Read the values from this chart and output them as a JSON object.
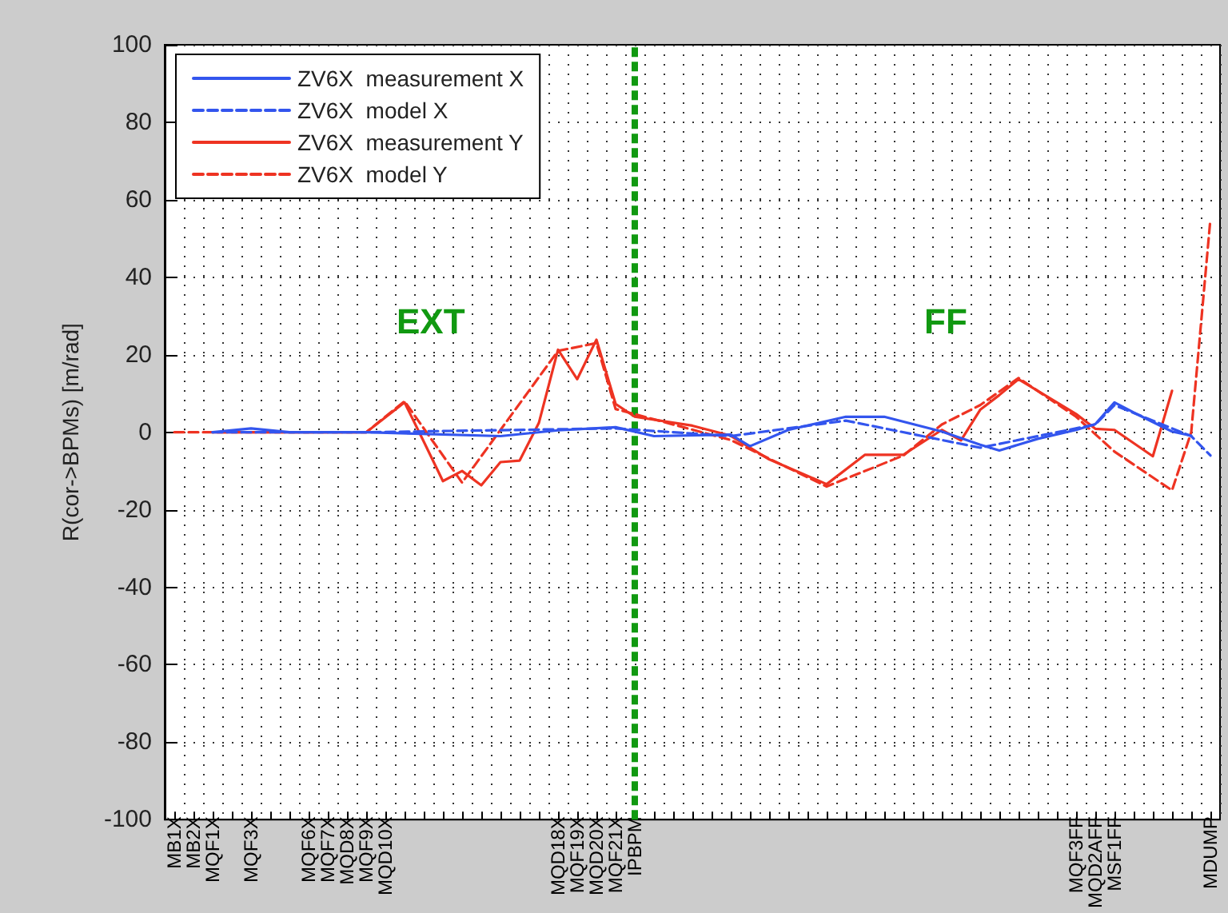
{
  "chart_data": {
    "type": "line",
    "ylabel": "R(cor->BPMs) [m/rad]",
    "categories": [
      "MB1X",
      "MB2X",
      "MQF1X",
      null,
      "MQF3X",
      null,
      null,
      "MQF6X",
      "MQF7X",
      "MQD8X",
      "MQF9X",
      "MQD10X",
      null,
      null,
      null,
      null,
      null,
      null,
      null,
      null,
      "MQD18X",
      "MQF19X",
      "MQD20X",
      "MQF21X",
      "IPBPM",
      null,
      null,
      null,
      null,
      null,
      null,
      null,
      null,
      null,
      null,
      null,
      null,
      null,
      null,
      null,
      null,
      null,
      null,
      null,
      null,
      null,
      null,
      "MQF3FF",
      "MQD2AFF",
      "MSF1FF",
      null,
      null,
      null,
      null,
      "MDUMP"
    ],
    "ylim": [
      -100,
      100
    ],
    "yticks": [
      -100,
      -80,
      -60,
      -40,
      -20,
      0,
      20,
      40,
      60,
      80,
      100
    ],
    "grid": true,
    "legend": "top left",
    "marker": "none",
    "series": [
      {
        "name": "ZV6X  measurement X",
        "color": "#3355ee",
        "line_style": "solid",
        "values": [
          null,
          null,
          0,
          null,
          1,
          null,
          0,
          null,
          null,
          null,
          0,
          null,
          null,
          null,
          null,
          null,
          null,
          -1,
          null,
          null,
          0.5,
          null,
          null,
          1.3,
          null,
          -1,
          null,
          null,
          null,
          -0.6,
          -3.6,
          null,
          0.6,
          null,
          null,
          4,
          null,
          4,
          null,
          null,
          0.2,
          null,
          -3.2,
          -4.7,
          null,
          -1.7,
          null,
          0.6,
          2.1,
          7.7,
          5.1,
          null,
          0.2,
          -0.9,
          null
        ]
      },
      {
        "name": "ZV6X  model X",
        "color": "#3355ee",
        "line_style": "dashed",
        "values": [
          null,
          null,
          0,
          null,
          null,
          null,
          null,
          null,
          null,
          null,
          0,
          null,
          null,
          null,
          null,
          null,
          null,
          null,
          null,
          null,
          null,
          null,
          null,
          1,
          null,
          null,
          null,
          null,
          null,
          -1,
          null,
          null,
          null,
          null,
          null,
          3,
          null,
          null,
          null,
          null,
          null,
          null,
          -4,
          null,
          null,
          null,
          null,
          null,
          2,
          7,
          null,
          null,
          null,
          -1,
          -6
        ]
      },
      {
        "name": "ZV6X  measurement Y",
        "color": "#ee3322",
        "line_style": "solid",
        "values": [
          null,
          null,
          0,
          null,
          null,
          null,
          null,
          null,
          null,
          null,
          0,
          null,
          7.7,
          -2.4,
          -12.6,
          -10,
          -13.7,
          -7.7,
          -7.3,
          2.4,
          21.3,
          13.7,
          23.9,
          7.3,
          4.0,
          null,
          null,
          1.7,
          null,
          -0.9,
          null,
          -7.0,
          null,
          null,
          -13.4,
          null,
          -5.8,
          null,
          -5.8,
          null,
          0.6,
          -2.1,
          5.8,
          9.6,
          13.7,
          null,
          null,
          4.7,
          0.9,
          0.6,
          null,
          -6.2,
          10.7,
          null,
          null
        ]
      },
      {
        "name": "ZV6X  model Y",
        "color": "#ee3322",
        "line_style": "dashed",
        "values": [
          0,
          null,
          null,
          null,
          null,
          null,
          null,
          null,
          null,
          null,
          0,
          null,
          8,
          null,
          null,
          -13,
          null,
          null,
          null,
          null,
          21,
          null,
          23,
          6,
          null,
          null,
          null,
          null,
          null,
          -2,
          null,
          null,
          null,
          null,
          -14,
          null,
          null,
          null,
          -6,
          null,
          2,
          null,
          7,
          null,
          14,
          null,
          null,
          4,
          null,
          -5,
          null,
          null,
          -15,
          0,
          55
        ]
      }
    ],
    "ref_lines": [
      {
        "axis": "x",
        "value": "IPBPM",
        "color": "#119911",
        "line_style": "dashed"
      }
    ],
    "annotations": [
      "EXT",
      "FF"
    ]
  }
}
